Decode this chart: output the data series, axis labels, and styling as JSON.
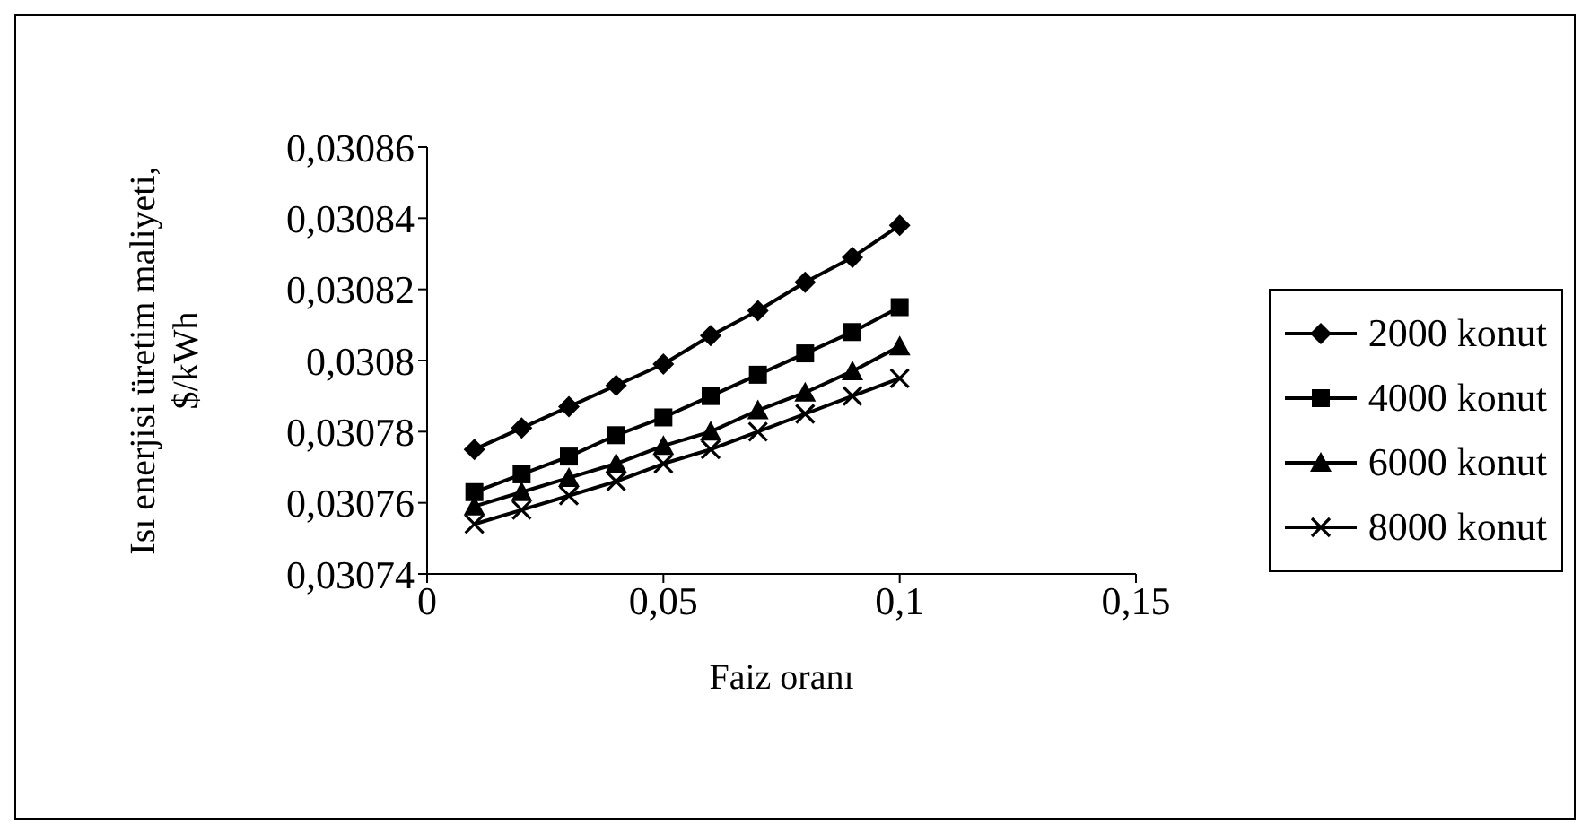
{
  "chart_data": {
    "type": "line",
    "xlabel": "Faiz oranı",
    "ylabel": "Isı enerjisi üretim maliyeti, $/kWh",
    "x": [
      0.01,
      0.02,
      0.03,
      0.04,
      0.05,
      0.06,
      0.07,
      0.08,
      0.09,
      0.1
    ],
    "xlim": [
      0,
      0.15
    ],
    "xticks": [
      0,
      {
        "value": 0.05,
        "label": "0,05"
      },
      {
        "value": 0.1,
        "label": "0,1"
      },
      {
        "value": 0.15,
        "label": "0,15"
      }
    ],
    "ylim": [
      0.03074,
      0.03086
    ],
    "yticks": [
      {
        "value": 0.03074,
        "label": "0,03074"
      },
      {
        "value": 0.03076,
        "label": "0,03076"
      },
      {
        "value": 0.03078,
        "label": "0,03078"
      },
      {
        "value": 0.0308,
        "label": "0,0308"
      },
      {
        "value": 0.03082,
        "label": "0,03082"
      },
      {
        "value": 0.03084,
        "label": "0,03084"
      },
      {
        "value": 0.03086,
        "label": "0,03086"
      }
    ],
    "grid": false,
    "legend": "right",
    "line_style": "solid",
    "series": [
      {
        "name": "2000 konut",
        "color": "#000000",
        "marker": "diamond",
        "values": [
          0.030775,
          0.030781,
          0.030787,
          0.030793,
          0.030799,
          0.030807,
          0.030814,
          0.030822,
          0.030829,
          0.030838
        ]
      },
      {
        "name": "4000 konut",
        "color": "#000000",
        "marker": "square",
        "values": [
          0.030763,
          0.030768,
          0.030773,
          0.030779,
          0.030784,
          0.03079,
          0.030796,
          0.030802,
          0.030808,
          0.030815
        ]
      },
      {
        "name": "6000 konut",
        "color": "#000000",
        "marker": "triangle",
        "values": [
          0.030759,
          0.030763,
          0.030767,
          0.030771,
          0.030776,
          0.03078,
          0.030786,
          0.030791,
          0.030797,
          0.030804
        ]
      },
      {
        "name": "8000 konut",
        "color": "#000000",
        "marker": "cross",
        "values": [
          0.030754,
          0.030758,
          0.030762,
          0.030766,
          0.030771,
          0.030775,
          0.03078,
          0.030785,
          0.03079,
          0.030795
        ]
      }
    ]
  }
}
